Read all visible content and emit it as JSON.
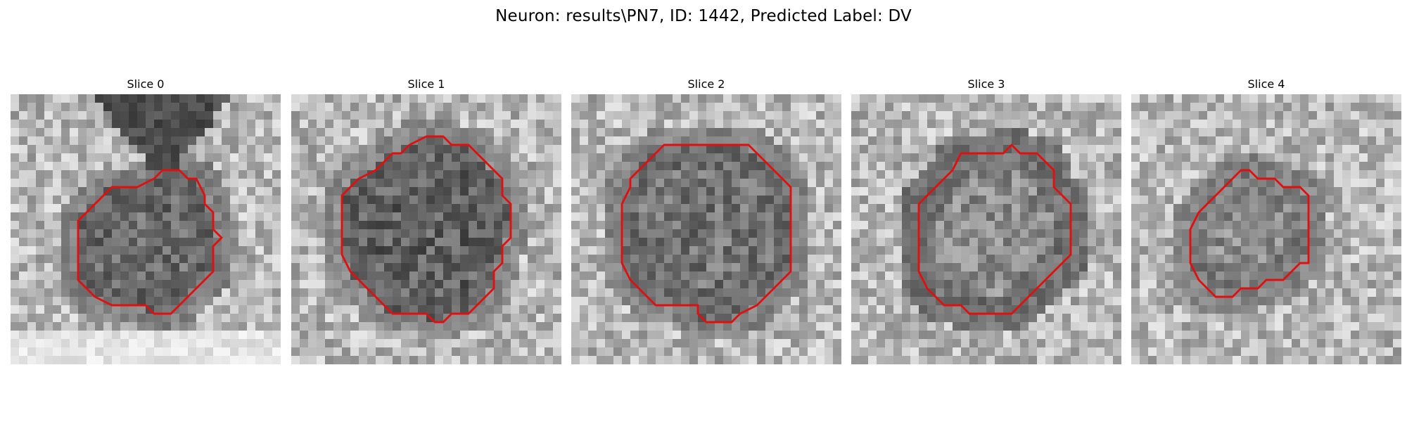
{
  "figure": {
    "suptitle": "Neuron: results\\PN7, ID: 1442, Predicted Label: DV"
  },
  "image": {
    "colormap": "gray",
    "contour_color": "#e01010",
    "grid_cells": 32
  },
  "slices": [
    {
      "title": "Slice 0",
      "center_intensity": 0.42,
      "ring_intensity": 0.3,
      "top_wedge": true,
      "bottom_bright": true,
      "contour": [
        [
          18,
          9
        ],
        [
          20,
          9
        ],
        [
          21,
          10
        ],
        [
          22,
          10
        ],
        [
          23,
          12
        ],
        [
          23,
          13
        ],
        [
          24,
          14
        ],
        [
          24,
          16
        ],
        [
          25,
          17
        ],
        [
          24,
          18
        ],
        [
          24,
          21
        ],
        [
          22,
          23
        ],
        [
          20,
          25
        ],
        [
          19,
          26
        ],
        [
          17,
          26
        ],
        [
          16,
          25
        ],
        [
          12,
          25
        ],
        [
          10,
          24
        ],
        [
          8,
          22
        ],
        [
          8,
          15
        ],
        [
          10,
          13
        ],
        [
          12,
          11
        ],
        [
          15,
          11
        ],
        [
          17,
          10
        ]
      ]
    },
    {
      "title": "Slice 1",
      "center_intensity": 0.38,
      "ring_intensity": 0.36,
      "top_wedge": false,
      "bottom_bright": false,
      "contour": [
        [
          16,
          5
        ],
        [
          18,
          5
        ],
        [
          19,
          6
        ],
        [
          21,
          6
        ],
        [
          22,
          7
        ],
        [
          23,
          8
        ],
        [
          25,
          10
        ],
        [
          25,
          12
        ],
        [
          26,
          13
        ],
        [
          26,
          17
        ],
        [
          25,
          18
        ],
        [
          25,
          20
        ],
        [
          24,
          21
        ],
        [
          24,
          23
        ],
        [
          22,
          25
        ],
        [
          21,
          26
        ],
        [
          19,
          26
        ],
        [
          18,
          27
        ],
        [
          17,
          27
        ],
        [
          16,
          26
        ],
        [
          12,
          26
        ],
        [
          9,
          23
        ],
        [
          8,
          22
        ],
        [
          7,
          21
        ],
        [
          6,
          19
        ],
        [
          6,
          12
        ],
        [
          8,
          10
        ],
        [
          10,
          9
        ],
        [
          12,
          7
        ],
        [
          13,
          7
        ],
        [
          14,
          6
        ]
      ]
    },
    {
      "title": "Slice 2",
      "center_intensity": 0.45,
      "ring_intensity": 0.32,
      "top_wedge": false,
      "bottom_bright": false,
      "contour": [
        [
          11,
          6
        ],
        [
          21,
          6
        ],
        [
          23,
          8
        ],
        [
          25,
          10
        ],
        [
          26,
          11
        ],
        [
          26,
          21
        ],
        [
          24,
          23
        ],
        [
          22,
          25
        ],
        [
          20,
          26
        ],
        [
          19,
          27
        ],
        [
          16,
          27
        ],
        [
          15,
          26
        ],
        [
          15,
          25
        ],
        [
          10,
          25
        ],
        [
          9,
          24
        ],
        [
          7,
          22
        ],
        [
          6,
          20
        ],
        [
          6,
          13
        ],
        [
          7,
          11
        ],
        [
          7,
          10
        ]
      ]
    },
    {
      "title": "Slice 3",
      "center_intensity": 0.55,
      "ring_intensity": 0.18,
      "top_wedge": false,
      "bottom_bright": false,
      "contour": [
        [
          13,
          7
        ],
        [
          18,
          7
        ],
        [
          19,
          6
        ],
        [
          20,
          7
        ],
        [
          22,
          7
        ],
        [
          23,
          8
        ],
        [
          24,
          9
        ],
        [
          24,
          11
        ],
        [
          26,
          13
        ],
        [
          26,
          19
        ],
        [
          24,
          21
        ],
        [
          22,
          23
        ],
        [
          20,
          25
        ],
        [
          19,
          26
        ],
        [
          14,
          26
        ],
        [
          13,
          25
        ],
        [
          11,
          25
        ],
        [
          9,
          23
        ],
        [
          8,
          21
        ],
        [
          8,
          13
        ],
        [
          9,
          12
        ],
        [
          10,
          11
        ],
        [
          12,
          9
        ]
      ]
    },
    {
      "title": "Slice 4",
      "center_intensity": 0.55,
      "ring_intensity": 0.32,
      "top_wedge": false,
      "bottom_bright": false,
      "contour": [
        [
          12,
          10
        ],
        [
          13,
          9
        ],
        [
          14,
          9
        ],
        [
          15,
          10
        ],
        [
          17,
          10
        ],
        [
          18,
          11
        ],
        [
          20,
          11
        ],
        [
          21,
          12
        ],
        [
          21,
          20
        ],
        [
          20,
          20
        ],
        [
          19,
          21
        ],
        [
          18,
          22
        ],
        [
          16,
          22
        ],
        [
          15,
          23
        ],
        [
          13,
          23
        ],
        [
          12,
          24
        ],
        [
          10,
          24
        ],
        [
          8,
          22
        ],
        [
          7,
          20
        ],
        [
          7,
          16
        ],
        [
          8,
          14
        ],
        [
          9,
          13
        ],
        [
          10,
          12
        ],
        [
          11,
          11
        ]
      ]
    }
  ]
}
